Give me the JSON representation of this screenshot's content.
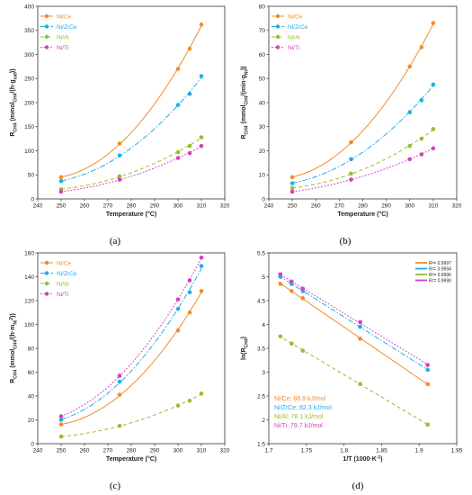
{
  "colors": {
    "Ni/Ce": "#f28c28",
    "Ni/ZrCe": "#1eaee6",
    "Ni/Al": "#96bf2e",
    "Ni/Ti": "#d63fbf"
  },
  "chart_data": [
    {
      "type": "scatter",
      "panel_label": "(a)",
      "xlabel": "Temperature (°C)",
      "ylabel": {
        "main": "R",
        "sub1": "CH4",
        "paren": " (mmol",
        "sub2": "CH4",
        "mid": "/(h·g",
        "sub3": "cat",
        "end": "))"
      },
      "xlim": [
        240,
        320
      ],
      "ylim": [
        0,
        400
      ],
      "xticks": [
        240,
        250,
        260,
        270,
        280,
        290,
        300,
        310,
        320
      ],
      "yticks": [
        0,
        50,
        100,
        150,
        200,
        250,
        300,
        350,
        400
      ],
      "legend": "top-left",
      "x": [
        250,
        275,
        300,
        305,
        310
      ],
      "series": [
        {
          "name": "Ni/Ce",
          "values": [
            45,
            115,
            270,
            312,
            362
          ]
        },
        {
          "name": "Ni/ZrCe",
          "values": [
            37,
            90,
            195,
            218,
            255
          ]
        },
        {
          "name": "Ni/Al",
          "values": [
            20,
            47,
            97,
            110,
            128
          ]
        },
        {
          "name": "Ni/Ti",
          "values": [
            15,
            40,
            85,
            95,
            110
          ]
        }
      ]
    },
    {
      "type": "scatter",
      "panel_label": "(b)",
      "xlabel": "Temperature (°C)",
      "ylabel": {
        "main": "R",
        "sub1": "CH4",
        "paren": " (mmol",
        "sub2": "CH4",
        "mid": "/(min·g",
        "sub3": "Ni",
        "end": "))"
      },
      "xlim": [
        240,
        320
      ],
      "ylim": [
        0,
        80
      ],
      "xticks": [
        240,
        250,
        260,
        270,
        280,
        290,
        300,
        310,
        320
      ],
      "yticks": [
        0,
        10,
        20,
        30,
        40,
        50,
        60,
        70,
        80
      ],
      "legend": "top-left",
      "x": [
        250,
        275,
        300,
        305,
        310
      ],
      "series": [
        {
          "name": "Ni/Ce",
          "values": [
            9,
            23.5,
            55,
            63,
            73
          ]
        },
        {
          "name": "Ni/ZrCe",
          "values": [
            6.5,
            16.5,
            36,
            41,
            47.5
          ]
        },
        {
          "name": "Ni/Al",
          "values": [
            4.5,
            10.5,
            22,
            25,
            29
          ]
        },
        {
          "name": "Ni/Ti",
          "values": [
            3,
            8,
            16.5,
            18.5,
            21
          ]
        }
      ]
    },
    {
      "type": "scatter",
      "panel_label": "(c)",
      "xlabel": "Temperature (°C)",
      "ylabel": {
        "main": "R",
        "sub1": "CH4",
        "paren": " (mmol",
        "sub2": "CH4",
        "mid": "/(h·m",
        "sub3": "Ni",
        "sup3": "2",
        "end": "))"
      },
      "xlim": [
        240,
        320
      ],
      "ylim": [
        0,
        160
      ],
      "xticks": [
        240,
        250,
        260,
        270,
        280,
        290,
        300,
        310,
        320
      ],
      "yticks": [
        0,
        20,
        40,
        60,
        80,
        100,
        120,
        140,
        160
      ],
      "legend": "top-left",
      "x": [
        250,
        275,
        300,
        305,
        310
      ],
      "series": [
        {
          "name": "Ni/Ce",
          "values": [
            16,
            41,
            95,
            110,
            128
          ]
        },
        {
          "name": "Ni/ZrCe",
          "values": [
            20,
            52,
            113,
            127,
            149
          ]
        },
        {
          "name": "Ni/Al",
          "values": [
            6,
            15,
            32,
            36,
            42
          ]
        },
        {
          "name": "Ni/Ti",
          "values": [
            23,
            57,
            121,
            137,
            156
          ]
        }
      ]
    },
    {
      "type": "scatter",
      "panel_label": "(d)",
      "xlabel": "1/T (1000·K",
      "xlabel_sup": "-1",
      "xlabel_end": ")",
      "ylabel": {
        "main": "ln(R",
        "sub1": "CH4",
        "end": ")"
      },
      "xlim": [
        1.7,
        1.95
      ],
      "ylim": [
        1.5,
        5.5
      ],
      "xticks": [
        1.7,
        1.75,
        1.8,
        1.85,
        1.9,
        1.95
      ],
      "yticks": [
        1.5,
        2,
        2.5,
        3,
        3.5,
        4,
        4.5,
        5,
        5.5
      ],
      "legend": "top-right",
      "x": [
        1.7155,
        1.7303,
        1.7452,
        1.8215,
        1.9113
      ],
      "series": [
        {
          "name": "Ni/Ce",
          "r2": "R²= 0.9997",
          "values": [
            4.85,
            4.7,
            4.55,
            3.7,
            2.75
          ]
        },
        {
          "name": "Ni/ZrCe",
          "r2": "R²= 0.9994",
          "values": [
            5.0,
            4.85,
            4.7,
            3.95,
            3.05
          ]
        },
        {
          "name": "Ni/Al",
          "r2": "R²= 0.9996",
          "values": [
            3.75,
            3.6,
            3.45,
            2.75,
            1.9
          ]
        },
        {
          "name": "Ni/Ti",
          "r2": "R²= 0.9990",
          "values": [
            5.05,
            4.9,
            4.75,
            4.05,
            3.15
          ]
        }
      ],
      "annotations": [
        "Ni/Ce; 88.8 kJ/mol",
        "Ni/ZrCe; 82.3 kJ/mol",
        "Ni/Al; 78.1 kJ/mol",
        "Ni/Ti; 79.7 kJ/mol"
      ]
    }
  ]
}
